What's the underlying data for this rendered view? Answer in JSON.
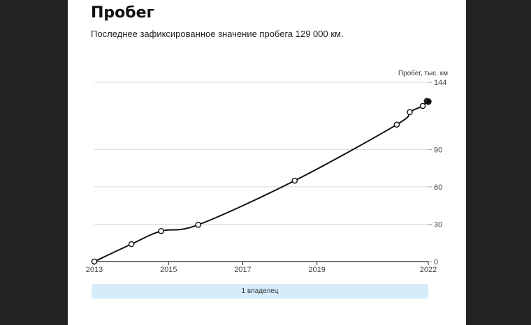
{
  "header": {
    "title": "Пробег",
    "subtitle": "Последнее зафиксированное значение пробега 129 000 км."
  },
  "owners": [
    {
      "label": "1 владелец"
    }
  ],
  "colors": {
    "page_bg": "#232323",
    "card_bg": "#ffffff",
    "line": "#111111",
    "grid": "#d9d9d9",
    "owner_bar": "#d6ecfb"
  },
  "chart_data": {
    "type": "line",
    "title": "",
    "xlabel": "",
    "ylabel": "Пробег, тыс. км",
    "x_ticks": [
      "2013",
      "2015",
      "2017",
      "2019",
      "2022"
    ],
    "y_ticks": [
      0,
      30,
      60,
      90,
      144
    ],
    "xlim": [
      2013.0,
      2022.0
    ],
    "ylim": [
      0,
      144
    ],
    "grid": true,
    "y_axis_side": "right",
    "series": [
      {
        "points": [
          {
            "x": 2013.0,
            "y": 0
          },
          {
            "x": 2014.0,
            "y": 14
          },
          {
            "x": 2014.8,
            "y": 24.5
          },
          {
            "x": 2015.8,
            "y": 29.5
          },
          {
            "x": 2018.4,
            "y": 65
          },
          {
            "x": 2021.15,
            "y": 110
          },
          {
            "x": 2021.5,
            "y": 120
          },
          {
            "x": 2021.85,
            "y": 125
          },
          {
            "x": 2021.96,
            "y": 129
          },
          {
            "x": 2022.0,
            "y": 128.5
          }
        ]
      }
    ]
  }
}
